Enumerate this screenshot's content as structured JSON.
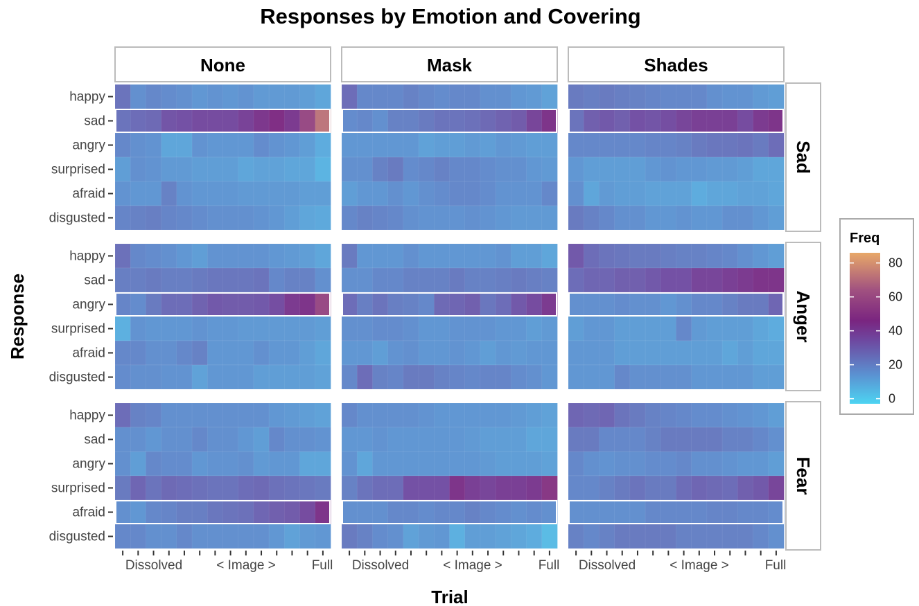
{
  "chart_data": {
    "type": "heatmap",
    "title": "Responses by Emotion and Covering",
    "xlabel": "Trial",
    "ylabel": "Response",
    "x_tick_labels": [
      "Dissolved",
      "< Image >",
      "Full"
    ],
    "n_trials": 14,
    "columns": [
      "None",
      "Mask",
      "Shades"
    ],
    "rows": [
      "Sad",
      "Anger",
      "Fear"
    ],
    "responses": [
      "happy",
      "sad",
      "angry",
      "surprised",
      "afraid",
      "disgusted"
    ],
    "legend": {
      "title": "Freq",
      "ticks": [
        0,
        20,
        40,
        60,
        80
      ],
      "min": -3,
      "max": 86
    },
    "colors": {
      "low": "#4dd4f2",
      "mid_low": "#5b8fd0",
      "mid": "#6e48a0",
      "high": "#7a2580",
      "top": "#e8a868",
      "panel_bg": "#ebebeb",
      "strip_border": "#bbbbbb"
    },
    "panels": [
      {
        "row": "Sad",
        "column": "None",
        "values": [
          [
            24,
            16,
            18,
            17,
            16,
            14,
            15,
            14,
            15,
            13,
            13,
            13,
            12,
            10
          ],
          [
            24,
            26,
            27,
            33,
            34,
            36,
            36,
            36,
            39,
            43,
            46,
            42,
            58,
            72
          ],
          [
            18,
            16,
            15,
            10,
            10,
            15,
            14,
            14,
            14,
            17,
            15,
            14,
            12,
            8
          ],
          [
            12,
            16,
            15,
            13,
            13,
            12,
            12,
            12,
            10,
            11,
            11,
            10,
            10,
            6
          ],
          [
            15,
            14,
            14,
            20,
            15,
            14,
            14,
            14,
            13,
            13,
            13,
            13,
            12,
            12
          ],
          [
            19,
            20,
            21,
            19,
            18,
            17,
            16,
            16,
            16,
            15,
            14,
            12,
            10,
            9
          ]
        ]
      },
      {
        "row": "Sad",
        "column": "Mask",
        "values": [
          [
            26,
            18,
            18,
            18,
            20,
            18,
            17,
            18,
            18,
            16,
            16,
            14,
            13,
            11
          ],
          [
            17,
            18,
            16,
            20,
            20,
            22,
            24,
            24,
            25,
            27,
            29,
            31,
            38,
            44
          ],
          [
            14,
            14,
            14,
            14,
            14,
            11,
            12,
            12,
            13,
            12,
            14,
            13,
            12,
            12
          ],
          [
            16,
            16,
            20,
            22,
            17,
            18,
            20,
            18,
            18,
            17,
            16,
            16,
            14,
            13
          ],
          [
            12,
            14,
            14,
            16,
            14,
            16,
            17,
            18,
            18,
            17,
            15,
            15,
            15,
            18
          ],
          [
            18,
            20,
            19,
            18,
            16,
            15,
            15,
            15,
            16,
            15,
            14,
            13,
            13,
            13
          ]
        ]
      },
      {
        "row": "Sad",
        "column": "Shades",
        "values": [
          [
            22,
            21,
            22,
            21,
            20,
            19,
            18,
            18,
            18,
            16,
            15,
            15,
            13,
            12
          ],
          [
            24,
            30,
            32,
            30,
            34,
            33,
            35,
            38,
            40,
            40,
            40,
            36,
            42,
            44
          ],
          [
            18,
            18,
            18,
            18,
            18,
            19,
            19,
            20,
            22,
            23,
            23,
            24,
            22,
            26
          ],
          [
            14,
            12,
            12,
            12,
            12,
            14,
            15,
            14,
            14,
            13,
            13,
            12,
            10,
            10
          ],
          [
            16,
            10,
            13,
            12,
            12,
            11,
            11,
            11,
            8,
            10,
            10,
            11,
            11,
            10
          ],
          [
            22,
            20,
            18,
            16,
            16,
            14,
            14,
            15,
            14,
            14,
            16,
            16,
            14,
            12
          ]
        ]
      },
      {
        "row": "Anger",
        "column": "None",
        "values": [
          [
            25,
            18,
            17,
            16,
            14,
            12,
            15,
            15,
            15,
            15,
            14,
            13,
            12,
            10
          ],
          [
            21,
            21,
            22,
            21,
            21,
            22,
            23,
            23,
            23,
            24,
            18,
            20,
            20,
            16
          ],
          [
            19,
            17,
            22,
            26,
            26,
            29,
            32,
            31,
            31,
            32,
            35,
            42,
            44,
            58
          ],
          [
            7,
            15,
            14,
            14,
            14,
            15,
            14,
            14,
            13,
            13,
            13,
            13,
            13,
            12
          ],
          [
            18,
            18,
            16,
            16,
            18,
            20,
            14,
            14,
            14,
            16,
            14,
            14,
            12,
            10
          ],
          [
            17,
            16,
            16,
            15,
            15,
            11,
            14,
            14,
            14,
            12,
            12,
            12,
            12,
            11
          ]
        ]
      },
      {
        "row": "Anger",
        "column": "Mask",
        "values": [
          [
            22,
            14,
            14,
            14,
            16,
            14,
            14,
            14,
            14,
            14,
            15,
            12,
            12,
            10
          ],
          [
            16,
            16,
            18,
            18,
            20,
            20,
            20,
            22,
            20,
            20,
            21,
            22,
            21,
            20
          ],
          [
            26,
            21,
            24,
            21,
            20,
            18,
            27,
            28,
            30,
            23,
            26,
            32,
            36,
            42
          ],
          [
            16,
            16,
            17,
            17,
            16,
            14,
            14,
            15,
            15,
            15,
            14,
            14,
            12,
            13
          ],
          [
            14,
            14,
            12,
            15,
            16,
            14,
            14,
            15,
            14,
            12,
            14,
            13,
            14,
            14
          ],
          [
            18,
            26,
            20,
            19,
            22,
            22,
            20,
            19,
            18,
            19,
            19,
            17,
            16,
            14
          ]
        ]
      },
      {
        "row": "Anger",
        "column": "Shades",
        "values": [
          [
            32,
            26,
            24,
            23,
            22,
            22,
            21,
            20,
            20,
            19,
            18,
            16,
            14,
            12
          ],
          [
            26,
            28,
            28,
            30,
            30,
            32,
            34,
            34,
            38,
            38,
            40,
            42,
            44,
            44
          ],
          [
            16,
            16,
            16,
            17,
            16,
            16,
            14,
            16,
            18,
            18,
            20,
            22,
            22,
            28
          ],
          [
            12,
            14,
            14,
            12,
            12,
            12,
            12,
            18,
            13,
            12,
            12,
            12,
            10,
            8
          ],
          [
            14,
            14,
            14,
            12,
            12,
            12,
            12,
            12,
            12,
            12,
            10,
            12,
            10,
            10
          ],
          [
            14,
            14,
            14,
            18,
            16,
            16,
            16,
            16,
            14,
            14,
            14,
            14,
            12,
            12
          ]
        ]
      },
      {
        "row": "Fear",
        "column": "None",
        "values": [
          [
            26,
            20,
            19,
            16,
            16,
            16,
            16,
            16,
            16,
            16,
            14,
            13,
            12,
            11
          ],
          [
            16,
            16,
            14,
            16,
            16,
            18,
            16,
            16,
            14,
            12,
            18,
            16,
            16,
            15
          ],
          [
            16,
            12,
            18,
            17,
            17,
            14,
            15,
            15,
            16,
            13,
            14,
            14,
            10,
            10
          ],
          [
            22,
            28,
            24,
            27,
            26,
            25,
            24,
            24,
            26,
            27,
            25,
            24,
            23,
            22
          ],
          [
            16,
            14,
            18,
            19,
            21,
            21,
            23,
            24,
            25,
            28,
            30,
            31,
            36,
            44
          ],
          [
            18,
            18,
            16,
            16,
            18,
            16,
            16,
            16,
            16,
            16,
            14,
            11,
            13,
            14
          ]
        ]
      },
      {
        "row": "Fear",
        "column": "Mask",
        "values": [
          [
            18,
            16,
            16,
            16,
            16,
            15,
            14,
            14,
            14,
            14,
            14,
            13,
            12,
            11
          ],
          [
            14,
            14,
            15,
            14,
            14,
            14,
            14,
            14,
            13,
            12,
            12,
            12,
            10,
            10
          ],
          [
            15,
            10,
            14,
            14,
            14,
            14,
            14,
            14,
            14,
            13,
            12,
            12,
            12,
            11
          ],
          [
            20,
            24,
            26,
            26,
            34,
            34,
            34,
            44,
            40,
            38,
            40,
            40,
            42,
            50
          ],
          [
            16,
            16,
            16,
            18,
            18,
            17,
            18,
            18,
            20,
            18,
            17,
            16,
            17,
            16
          ],
          [
            22,
            20,
            17,
            16,
            11,
            13,
            14,
            7,
            12,
            12,
            11,
            10,
            8,
            4
          ]
        ]
      },
      {
        "row": "Fear",
        "column": "Shades",
        "values": [
          [
            28,
            27,
            28,
            24,
            22,
            20,
            19,
            18,
            17,
            17,
            16,
            15,
            14,
            12
          ],
          [
            22,
            22,
            18,
            18,
            18,
            20,
            22,
            22,
            22,
            22,
            20,
            20,
            18,
            16
          ],
          [
            18,
            16,
            15,
            16,
            16,
            17,
            17,
            18,
            16,
            16,
            15,
            14,
            14,
            12
          ],
          [
            18,
            18,
            20,
            22,
            24,
            22,
            22,
            26,
            28,
            27,
            26,
            30,
            32,
            38
          ],
          [
            16,
            16,
            16,
            16,
            16,
            18,
            18,
            18,
            18,
            19,
            19,
            18,
            18,
            17
          ],
          [
            20,
            18,
            20,
            22,
            22,
            22,
            22,
            20,
            20,
            20,
            20,
            20,
            18,
            16
          ]
        ]
      }
    ]
  }
}
